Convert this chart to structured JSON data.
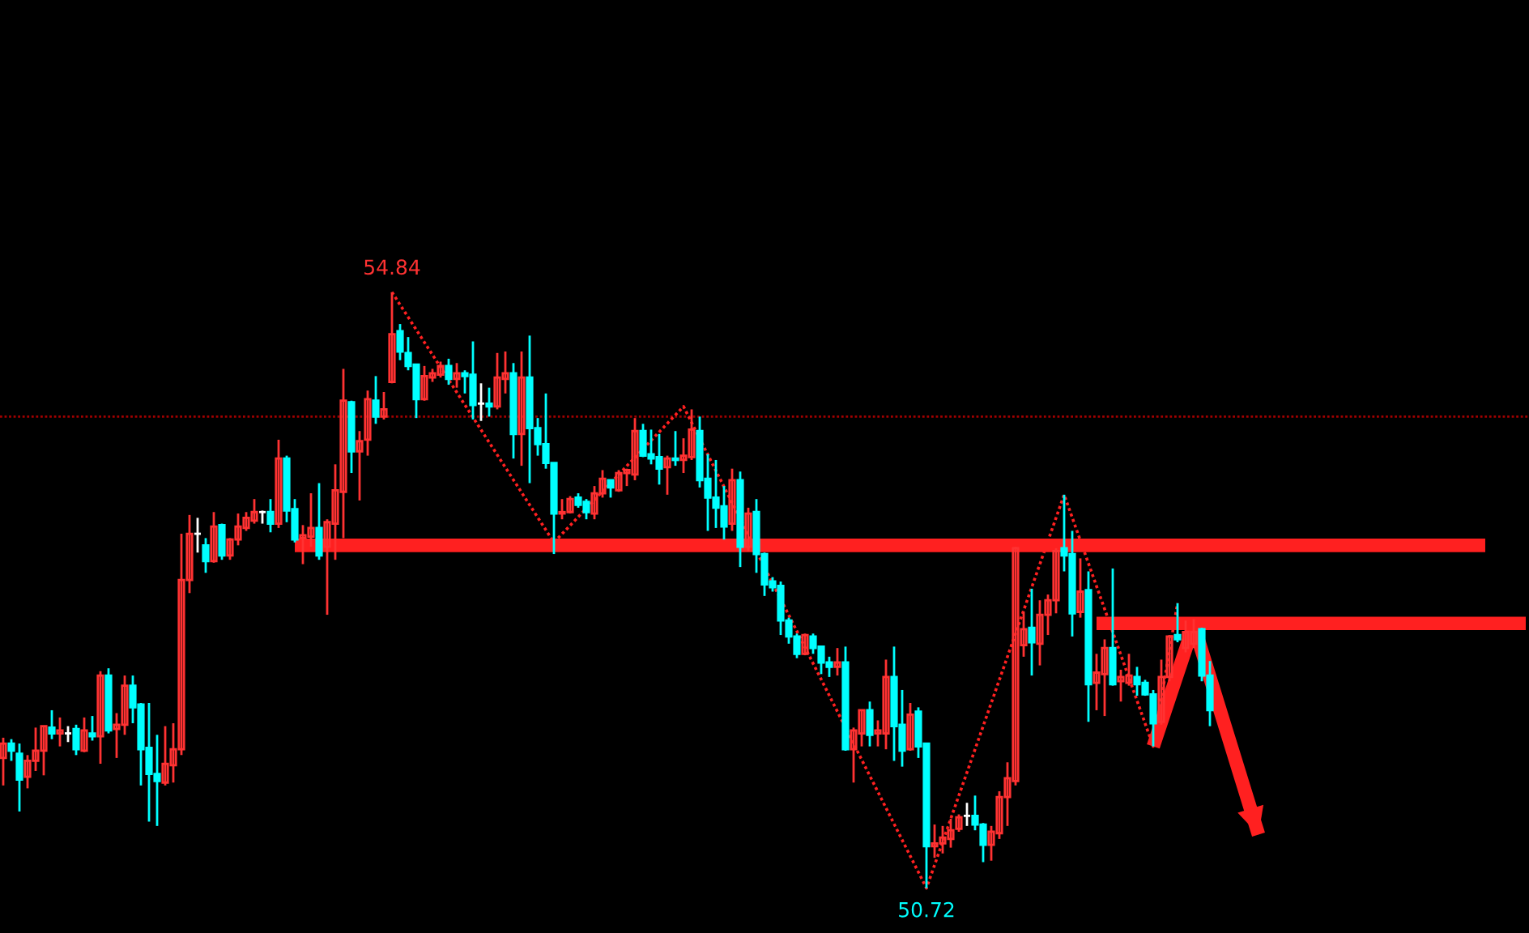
{
  "chart_data": {
    "type": "candlestick",
    "categories": [
      null,
      null,
      null,
      null,
      null,
      null,
      null,
      null,
      null,
      null,
      null,
      null,
      null,
      null,
      null,
      null,
      null,
      null,
      null,
      null,
      null,
      null,
      null,
      null,
      null,
      null,
      null,
      null,
      null,
      null,
      null,
      null,
      null,
      null,
      null,
      null,
      null,
      null,
      null,
      null,
      null,
      null,
      null,
      null,
      null,
      null,
      null,
      null,
      null,
      null,
      null,
      null,
      null,
      null,
      null,
      null,
      null,
      null,
      null,
      null,
      null,
      null,
      null,
      null,
      null,
      null,
      null,
      null,
      null,
      null,
      null,
      null,
      null,
      null,
      null,
      null,
      null,
      null,
      null,
      null,
      null,
      null,
      null,
      null,
      null,
      null,
      null,
      null,
      null,
      null,
      null,
      null,
      null,
      null,
      null,
      null,
      null,
      null,
      null,
      null,
      null,
      null,
      null,
      null,
      null,
      null,
      null,
      null,
      null,
      null,
      null,
      null,
      null,
      null,
      null,
      null,
      null,
      null,
      null,
      null,
      null,
      null,
      null,
      null,
      null,
      null,
      null,
      null,
      null,
      null,
      null,
      null,
      null,
      null,
      null,
      null,
      null,
      null,
      null,
      null,
      null,
      null,
      null,
      null,
      null,
      null,
      null,
      null,
      null,
      null,
      null,
      null,
      null,
      null,
      null,
      null,
      null,
      null,
      null,
      null,
      null,
      null,
      null,
      null,
      null,
      null,
      null,
      null,
      null,
      null,
      null,
      null,
      null,
      null,
      null,
      null,
      null,
      null,
      null,
      null,
      null,
      null,
      null,
      null,
      null,
      null,
      null,
      null,
      null
    ],
    "ohlc": [
      [
        51.62,
        51.76,
        51.43,
        51.72
      ],
      [
        51.72,
        51.75,
        51.6,
        51.67
      ],
      [
        51.65,
        51.72,
        51.25,
        51.47
      ],
      [
        51.49,
        51.64,
        51.41,
        51.6
      ],
      [
        51.6,
        51.83,
        51.53,
        51.67
      ],
      [
        51.67,
        51.84,
        51.5,
        51.84
      ],
      [
        51.83,
        51.95,
        51.75,
        51.79
      ],
      [
        51.79,
        51.9,
        51.7,
        51.81
      ],
      [
        51.79,
        51.84,
        51.73,
        51.79
      ],
      [
        51.82,
        51.85,
        51.64,
        51.68
      ],
      [
        51.67,
        51.9,
        51.66,
        51.81
      ],
      [
        51.79,
        51.91,
        51.74,
        51.77
      ],
      [
        51.77,
        52.22,
        51.58,
        52.19
      ],
      [
        52.19,
        52.24,
        51.79,
        51.81
      ],
      [
        51.82,
        51.93,
        51.62,
        51.85
      ],
      [
        51.85,
        52.19,
        51.78,
        52.12
      ],
      [
        52.12,
        52.19,
        51.86,
        51.97
      ],
      [
        51.99,
        52.0,
        51.43,
        51.68
      ],
      [
        51.69,
        52.0,
        51.18,
        51.51
      ],
      [
        51.51,
        51.78,
        51.15,
        51.46
      ],
      [
        51.45,
        51.84,
        51.43,
        51.58
      ],
      [
        51.57,
        51.86,
        51.45,
        51.68
      ],
      [
        51.68,
        53.17,
        51.64,
        52.85
      ],
      [
        52.85,
        53.3,
        52.76,
        53.17
      ],
      [
        53.17,
        53.28,
        53.04,
        53.17
      ],
      [
        53.09,
        53.14,
        52.9,
        52.98
      ],
      [
        52.98,
        53.32,
        52.97,
        53.22
      ],
      [
        53.23,
        53.24,
        52.99,
        53.02
      ],
      [
        53.02,
        53.14,
        52.99,
        53.13
      ],
      [
        53.13,
        53.31,
        53.09,
        53.22
      ],
      [
        53.21,
        53.32,
        53.19,
        53.28
      ],
      [
        53.26,
        53.41,
        53.24,
        53.32
      ],
      [
        53.32,
        53.33,
        53.24,
        53.32
      ],
      [
        53.32,
        53.41,
        53.18,
        53.24
      ],
      [
        53.24,
        53.82,
        53.21,
        53.69
      ],
      [
        53.69,
        53.71,
        53.25,
        53.33
      ],
      [
        53.34,
        53.41,
        53.11,
        53.13
      ],
      [
        53.14,
        53.23,
        52.96,
        53.16
      ],
      [
        53.15,
        53.45,
        53.08,
        53.21
      ],
      [
        53.21,
        53.52,
        52.99,
        53.02
      ],
      [
        53.08,
        53.27,
        52.61,
        53.25
      ],
      [
        53.24,
        53.65,
        52.99,
        53.47
      ],
      [
        53.46,
        54.31,
        53.14,
        54.09
      ],
      [
        54.08,
        54.09,
        53.59,
        53.74
      ],
      [
        53.74,
        53.88,
        53.4,
        53.81
      ],
      [
        53.82,
        54.16,
        53.71,
        54.1
      ],
      [
        54.09,
        54.26,
        53.93,
        53.98
      ],
      [
        53.98,
        54.15,
        53.96,
        54.03
      ],
      [
        54.22,
        54.84,
        54.21,
        54.55
      ],
      [
        54.57,
        54.62,
        54.37,
        54.43
      ],
      [
        54.42,
        54.53,
        54.3,
        54.33
      ],
      [
        54.34,
        54.34,
        53.97,
        54.1
      ],
      [
        54.1,
        54.33,
        54.09,
        54.26
      ],
      [
        54.25,
        54.31,
        54.22,
        54.28
      ],
      [
        54.27,
        54.36,
        54.25,
        54.33
      ],
      [
        54.33,
        54.38,
        54.2,
        54.24
      ],
      [
        54.24,
        54.35,
        54.18,
        54.28
      ],
      [
        54.28,
        54.3,
        54.14,
        54.26
      ],
      [
        54.27,
        54.5,
        53.96,
        54.06
      ],
      [
        54.07,
        54.21,
        53.95,
        54.07
      ],
      [
        54.07,
        54.18,
        53.98,
        54.05
      ],
      [
        54.05,
        54.42,
        54.03,
        54.25
      ],
      [
        54.24,
        54.43,
        54.14,
        54.28
      ],
      [
        54.28,
        54.35,
        53.69,
        53.86
      ],
      [
        53.86,
        54.43,
        53.64,
        54.25
      ],
      [
        54.25,
        54.54,
        53.52,
        53.9
      ],
      [
        53.9,
        53.97,
        53.71,
        53.79
      ],
      [
        53.79,
        54.14,
        53.62,
        53.66
      ],
      [
        53.66,
        53.66,
        53.03,
        53.31
      ],
      [
        53.31,
        53.41,
        53.27,
        53.32
      ],
      [
        53.32,
        53.43,
        53.31,
        53.41
      ],
      [
        53.42,
        53.45,
        53.35,
        53.37
      ],
      [
        53.39,
        53.41,
        53.27,
        53.32
      ],
      [
        53.31,
        53.5,
        53.27,
        53.45
      ],
      [
        53.45,
        53.61,
        53.42,
        53.55
      ],
      [
        53.54,
        53.54,
        53.42,
        53.49
      ],
      [
        53.47,
        53.61,
        53.46,
        53.59
      ],
      [
        53.59,
        53.62,
        53.5,
        53.61
      ],
      [
        53.58,
        53.97,
        53.54,
        53.88
      ],
      [
        53.88,
        53.93,
        53.7,
        53.71
      ],
      [
        53.72,
        53.89,
        53.65,
        53.69
      ],
      [
        53.7,
        53.86,
        53.51,
        53.62
      ],
      [
        53.63,
        53.71,
        53.44,
        53.69
      ],
      [
        53.69,
        53.88,
        53.64,
        53.68
      ],
      [
        53.68,
        53.83,
        53.59,
        53.71
      ],
      [
        53.7,
        54.03,
        53.68,
        53.89
      ],
      [
        53.88,
        53.98,
        53.49,
        53.54
      ],
      [
        53.55,
        53.72,
        53.19,
        53.42
      ],
      [
        53.42,
        53.68,
        53.21,
        53.35
      ],
      [
        53.36,
        53.5,
        53.13,
        53.22
      ],
      [
        53.24,
        53.62,
        53.19,
        53.54
      ],
      [
        53.54,
        53.6,
        52.94,
        53.08
      ],
      [
        53.08,
        53.35,
        53.05,
        53.31
      ],
      [
        53.32,
        53.41,
        52.9,
        53.03
      ],
      [
        53.03,
        53.04,
        52.74,
        52.82
      ],
      [
        52.84,
        52.87,
        52.77,
        52.8
      ],
      [
        52.81,
        52.84,
        52.47,
        52.57
      ],
      [
        52.57,
        52.59,
        52.41,
        52.46
      ],
      [
        52.46,
        52.48,
        52.31,
        52.34
      ],
      [
        52.34,
        52.48,
        52.33,
        52.47
      ],
      [
        52.46,
        52.48,
        52.34,
        52.38
      ],
      [
        52.39,
        52.39,
        52.2,
        52.28
      ],
      [
        52.28,
        52.32,
        52.18,
        52.25
      ],
      [
        52.25,
        52.38,
        52.19,
        52.28
      ],
      [
        52.28,
        52.39,
        51.67,
        51.68
      ],
      [
        51.68,
        51.83,
        51.45,
        51.81
      ],
      [
        51.79,
        51.95,
        51.7,
        51.95
      ],
      [
        51.95,
        52.01,
        51.7,
        51.78
      ],
      [
        51.79,
        51.88,
        51.7,
        51.81
      ],
      [
        51.79,
        52.3,
        51.68,
        52.18
      ],
      [
        52.18,
        52.39,
        51.6,
        51.84
      ],
      [
        51.85,
        52.09,
        51.56,
        51.67
      ],
      [
        51.68,
        52.0,
        51.67,
        51.92
      ],
      [
        51.94,
        51.97,
        51.62,
        51.7
      ],
      [
        51.72,
        51.72,
        50.72,
        51.01
      ],
      [
        51.01,
        51.16,
        50.93,
        51.03
      ],
      [
        51.03,
        51.15,
        50.96,
        51.07
      ],
      [
        51.06,
        51.2,
        51.0,
        51.12
      ],
      [
        51.13,
        51.23,
        51.11,
        51.21
      ],
      [
        51.22,
        51.31,
        51.15,
        51.22
      ],
      [
        51.22,
        51.36,
        51.12,
        51.16
      ],
      [
        51.16,
        51.17,
        50.9,
        51.02
      ],
      [
        51.02,
        51.15,
        50.91,
        51.11
      ],
      [
        51.1,
        51.39,
        51.06,
        51.35
      ],
      [
        51.35,
        51.59,
        51.15,
        51.48
      ],
      [
        51.46,
        53.08,
        51.43,
        53.07
      ],
      [
        52.4,
        52.63,
        52.32,
        52.51
      ],
      [
        52.52,
        52.79,
        52.19,
        52.42
      ],
      [
        52.41,
        52.71,
        52.26,
        52.61
      ],
      [
        52.61,
        52.75,
        52.47,
        52.71
      ],
      [
        52.71,
        53.07,
        52.62,
        53.05
      ],
      [
        53.07,
        53.44,
        52.91,
        53.02
      ],
      [
        53.03,
        53.19,
        52.46,
        52.62
      ],
      [
        52.63,
        53.0,
        52.59,
        52.77
      ],
      [
        52.78,
        52.91,
        51.87,
        52.13
      ],
      [
        52.14,
        52.34,
        51.95,
        52.21
      ],
      [
        52.2,
        52.44,
        51.91,
        52.38
      ],
      [
        52.38,
        52.93,
        52.12,
        52.13
      ],
      [
        52.15,
        52.23,
        52.01,
        52.18
      ],
      [
        52.14,
        52.34,
        52.12,
        52.19
      ],
      [
        52.18,
        52.25,
        52.05,
        52.13
      ],
      [
        52.14,
        52.16,
        52.05,
        52.06
      ],
      [
        52.06,
        52.09,
        51.7,
        51.86
      ],
      [
        51.87,
        52.3,
        51.85,
        52.18
      ],
      [
        52.18,
        52.47,
        52.15,
        52.46
      ],
      [
        52.47,
        52.69,
        52.42,
        52.44
      ],
      [
        52.38,
        52.57,
        52.35,
        52.49
      ],
      [
        52.41,
        52.58,
        52.38,
        52.49
      ],
      [
        52.51,
        52.52,
        52.15,
        52.19
      ],
      [
        52.19,
        52.29,
        51.84,
        51.95
      ],
      null,
      null,
      null,
      null,
      null,
      null,
      null,
      null,
      null,
      null,
      null,
      null,
      null,
      null,
      null,
      null,
      null,
      null,
      null,
      null,
      null,
      null,
      null,
      null,
      null,
      null,
      null,
      null,
      null,
      null,
      null,
      null,
      null,
      null,
      null,
      null,
      null,
      null,
      null
    ],
    "colors": [
      "#ff3232",
      "#00ffff",
      "#00ffff",
      "#ff3232",
      "#ff3232",
      "#ff3232",
      "#00ffff",
      "#ff3232",
      "#ffffff",
      "#00ffff",
      "#ff3232",
      "#00ffff",
      "#ff3232",
      "#00ffff",
      "#ff3232",
      "#ff3232",
      "#00ffff",
      "#00ffff",
      "#00ffff",
      "#00ffff",
      "#ff3232",
      "#ff3232",
      "#ff3232",
      "#ff3232",
      "#ffffff",
      "#00ffff",
      "#ff3232",
      "#00ffff",
      "#ff3232",
      "#ff3232",
      "#ff3232",
      "#ff3232",
      "#ffffff",
      "#00ffff",
      "#ff3232",
      "#00ffff",
      "#00ffff",
      "#ff3232",
      "#ff3232",
      "#00ffff",
      "#ff3232",
      "#ff3232",
      "#ff3232",
      "#00ffff",
      "#ff3232",
      "#ff3232",
      "#00ffff",
      "#ff3232",
      "#ff3232",
      "#00ffff",
      "#00ffff",
      "#00ffff",
      "#ff3232",
      "#ff3232",
      "#ff3232",
      "#00ffff",
      "#ff3232",
      "#00ffff",
      "#00ffff",
      "#ffffff",
      "#00ffff",
      "#ff3232",
      "#ff3232",
      "#00ffff",
      "#ff3232",
      "#00ffff",
      "#00ffff",
      "#00ffff",
      "#00ffff",
      "#ff3232",
      "#ff3232",
      "#00ffff",
      "#00ffff",
      "#ff3232",
      "#ff3232",
      "#00ffff",
      "#ff3232",
      "#ff3232",
      "#ff3232",
      "#00ffff",
      "#00ffff",
      "#00ffff",
      "#ff3232",
      "#00ffff",
      "#ff3232",
      "#ff3232",
      "#00ffff",
      "#00ffff",
      "#00ffff",
      "#00ffff",
      "#ff3232",
      "#00ffff",
      "#ff3232",
      "#00ffff",
      "#00ffff",
      "#00ffff",
      "#00ffff",
      "#00ffff",
      "#00ffff",
      "#ff3232",
      "#00ffff",
      "#00ffff",
      "#00ffff",
      "#ff3232",
      "#00ffff",
      "#ff3232",
      "#ff3232",
      "#00ffff",
      "#ff3232",
      "#ff3232",
      "#00ffff",
      "#00ffff",
      "#ff3232",
      "#00ffff",
      "#00ffff",
      "#ff3232",
      "#ff3232",
      "#ff3232",
      "#ff3232",
      "#ffffff",
      "#00ffff",
      "#00ffff",
      "#ff3232",
      "#ff3232",
      "#ff3232",
      "#ff3232",
      "#ff3232",
      "#00ffff",
      "#ff3232",
      "#ff3232",
      "#ff3232",
      "#00ffff",
      "#00ffff",
      "#ff3232",
      "#00ffff",
      "#ff3232",
      "#ff3232",
      "#00ffff",
      "#ff3232",
      "#ff3232",
      "#00ffff",
      "#00ffff",
      "#00ffff",
      "#ff3232",
      "#ff3232",
      "#00ffff",
      "#ff3232",
      "#ff3232",
      "#00ffff",
      "#00ffff",
      null,
      null,
      null,
      null,
      null,
      null,
      null,
      null,
      null,
      null,
      null,
      null,
      null,
      null,
      null,
      null,
      null,
      null,
      null,
      null,
      null,
      null,
      null,
      null,
      null,
      null,
      null,
      null,
      null,
      null,
      null,
      null,
      null,
      null,
      null,
      null,
      null,
      null,
      null
    ],
    "series": [
      {
        "type": "line",
        "color": "#ff2020",
        "line_style": "dotted",
        "values": [
          null,
          null,
          null,
          null,
          null,
          null,
          null,
          null,
          null,
          null,
          null,
          null,
          null,
          null,
          null,
          null,
          null,
          null,
          null,
          null,
          null,
          null,
          null,
          null,
          null,
          null,
          null,
          null,
          null,
          null,
          null,
          null,
          null,
          null,
          null,
          null,
          null,
          null,
          null,
          null,
          null,
          null,
          null,
          null,
          null,
          null,
          null,
          null,
          54.84,
          null,
          null,
          null,
          null,
          null,
          null,
          null,
          null,
          null,
          null,
          null,
          null,
          null,
          null,
          null,
          null,
          null,
          null,
          null,
          53.11,
          null,
          null,
          null,
          null,
          null,
          null,
          null,
          null,
          null,
          null,
          null,
          null,
          null,
          null,
          null,
          54.05,
          null,
          null,
          null,
          null,
          null,
          null,
          null,
          null,
          null,
          null,
          null,
          null,
          null,
          null,
          null,
          null,
          null,
          null,
          null,
          null,
          null,
          null,
          null,
          null,
          null,
          null,
          null,
          null,
          null,
          50.72,
          null,
          null,
          null,
          null,
          null,
          null,
          null,
          null,
          null,
          null,
          null,
          null,
          null,
          null,
          null,
          null,
          53.44,
          null,
          null,
          null,
          null,
          null,
          null,
          null,
          null,
          null,
          null,
          51.7,
          null,
          null,
          52.69,
          null,
          null,
          null,
          null,
          null,
          null,
          null,
          null,
          null,
          null,
          null,
          null,
          null,
          null,
          null,
          null,
          null,
          null,
          null,
          null,
          null,
          null,
          null,
          null,
          null,
          null,
          null,
          null,
          null,
          null,
          null,
          null,
          null,
          null,
          null,
          null,
          null,
          null,
          null,
          null,
          null,
          null,
          null
        ]
      },
      {
        "type": "line",
        "color": "#ff2020",
        "line_style": "solid",
        "values": [
          null,
          null,
          null,
          null,
          null,
          null,
          null,
          null,
          null,
          null,
          null,
          null,
          null,
          null,
          null,
          null,
          null,
          null,
          null,
          null,
          null,
          null,
          null,
          null,
          null,
          null,
          null,
          null,
          null,
          null,
          null,
          null,
          null,
          null,
          null,
          null,
          53.09,
          null,
          null,
          null,
          null,
          null,
          null,
          null,
          null,
          null,
          null,
          null,
          null,
          null,
          null,
          null,
          null,
          null,
          null,
          null,
          null,
          null,
          null,
          null,
          null,
          null,
          null,
          null,
          null,
          null,
          null,
          null,
          null,
          null,
          null,
          null,
          null,
          null,
          null,
          null,
          null,
          null,
          null,
          null,
          null,
          null,
          null,
          null,
          null,
          null,
          null,
          null,
          null,
          null,
          null,
          null,
          null,
          null,
          null,
          null,
          null,
          null,
          null,
          null,
          null,
          null,
          null,
          null,
          null,
          null,
          null,
          null,
          null,
          null,
          null,
          null,
          null,
          null,
          null,
          null,
          null,
          null,
          null,
          null,
          null,
          null,
          null,
          null,
          null,
          null,
          null,
          null,
          null,
          null,
          null,
          null,
          null,
          null,
          null,
          null,
          null,
          null,
          null,
          null,
          null,
          null,
          null,
          null,
          null,
          null,
          null,
          null,
          null,
          null,
          null,
          null,
          null,
          null,
          null,
          null,
          null,
          null,
          null,
          null,
          null,
          null,
          null,
          null,
          null,
          null,
          null,
          null,
          null,
          null,
          null,
          null,
          null,
          null,
          null,
          null,
          null,
          null,
          null,
          null,
          null,
          null,
          null,
          53.09,
          null,
          null,
          null,
          null,
          null
        ]
      },
      {
        "type": "line",
        "color": "#ff2020",
        "line_style": "solid",
        "values": [
          null,
          null,
          null,
          null,
          null,
          null,
          null,
          null,
          null,
          null,
          null,
          null,
          null,
          null,
          null,
          null,
          null,
          null,
          null,
          null,
          null,
          null,
          null,
          null,
          null,
          null,
          null,
          null,
          null,
          null,
          null,
          null,
          null,
          null,
          null,
          null,
          null,
          null,
          null,
          null,
          null,
          null,
          null,
          null,
          null,
          null,
          null,
          null,
          null,
          null,
          null,
          null,
          null,
          null,
          null,
          null,
          null,
          null,
          null,
          null,
          null,
          null,
          null,
          null,
          null,
          null,
          null,
          null,
          null,
          null,
          null,
          null,
          null,
          null,
          null,
          null,
          null,
          null,
          null,
          null,
          null,
          null,
          null,
          null,
          null,
          null,
          null,
          null,
          null,
          null,
          null,
          null,
          null,
          null,
          null,
          null,
          null,
          null,
          null,
          null,
          null,
          null,
          null,
          null,
          null,
          null,
          null,
          null,
          null,
          null,
          null,
          null,
          null,
          null,
          null,
          null,
          null,
          null,
          null,
          null,
          null,
          null,
          null,
          null,
          null,
          null,
          null,
          null,
          null,
          null,
          null,
          null,
          null,
          null,
          null,
          52.55,
          null,
          null,
          null,
          null,
          null,
          null,
          null,
          null,
          null,
          null,
          null,
          null,
          null,
          null,
          null,
          null,
          null,
          null,
          null,
          null,
          null,
          null,
          null,
          null,
          null,
          null,
          null,
          null,
          null,
          null,
          null,
          null,
          null,
          null,
          null,
          null,
          null,
          null,
          null,
          null,
          null,
          null,
          null,
          null,
          null,
          null,
          null,
          null,
          null,
          null,
          null,
          null,
          52.55
        ]
      },
      {
        "type": "line",
        "color": "#ff2020",
        "line_style": "solid",
        "values": [
          null,
          null,
          null,
          null,
          null,
          null,
          null,
          null,
          null,
          null,
          null,
          null,
          null,
          null,
          null,
          null,
          null,
          null,
          null,
          null,
          null,
          null,
          null,
          null,
          null,
          null,
          null,
          null,
          null,
          null,
          null,
          null,
          null,
          null,
          null,
          null,
          null,
          null,
          null,
          null,
          null,
          null,
          null,
          null,
          null,
          null,
          null,
          null,
          null,
          null,
          null,
          null,
          null,
          null,
          null,
          null,
          null,
          null,
          null,
          null,
          null,
          null,
          null,
          null,
          null,
          null,
          null,
          null,
          null,
          null,
          null,
          null,
          null,
          null,
          null,
          null,
          null,
          null,
          null,
          null,
          null,
          null,
          null,
          null,
          null,
          null,
          null,
          null,
          null,
          null,
          null,
          null,
          null,
          null,
          null,
          null,
          null,
          null,
          null,
          null,
          null,
          null,
          null,
          null,
          null,
          null,
          null,
          null,
          null,
          null,
          null,
          null,
          null,
          null,
          null,
          null,
          null,
          null,
          null,
          null,
          null,
          null,
          null,
          null,
          null,
          null,
          null,
          null,
          null,
          null,
          null,
          null,
          null,
          null,
          null,
          null,
          null,
          null,
          null,
          null,
          null,
          null,
          51.7,
          null,
          null,
          null,
          null,
          52.54,
          null,
          null,
          null,
          null,
          null,
          null,
          null,
          51.09,
          null,
          null,
          null,
          null,
          null,
          null,
          null,
          null,
          null,
          null,
          null,
          null,
          null,
          null,
          null,
          null,
          null,
          null,
          null,
          null,
          null,
          null,
          null,
          null,
          null,
          null,
          null,
          null,
          null,
          null,
          null,
          null,
          null
        ]
      }
    ],
    "ref_lines": [
      {
        "axis": "y",
        "value": 53.98,
        "color": "#a00000",
        "line_style": "dotted"
      }
    ],
    "annotations": [
      {
        "text": "54.84",
        "y": 54.84
      },
      {
        "text": "50.72",
        "y": 50.72
      }
    ],
    "ylim": [
      50.41,
      56.86
    ],
    "tick_labels": false
  }
}
